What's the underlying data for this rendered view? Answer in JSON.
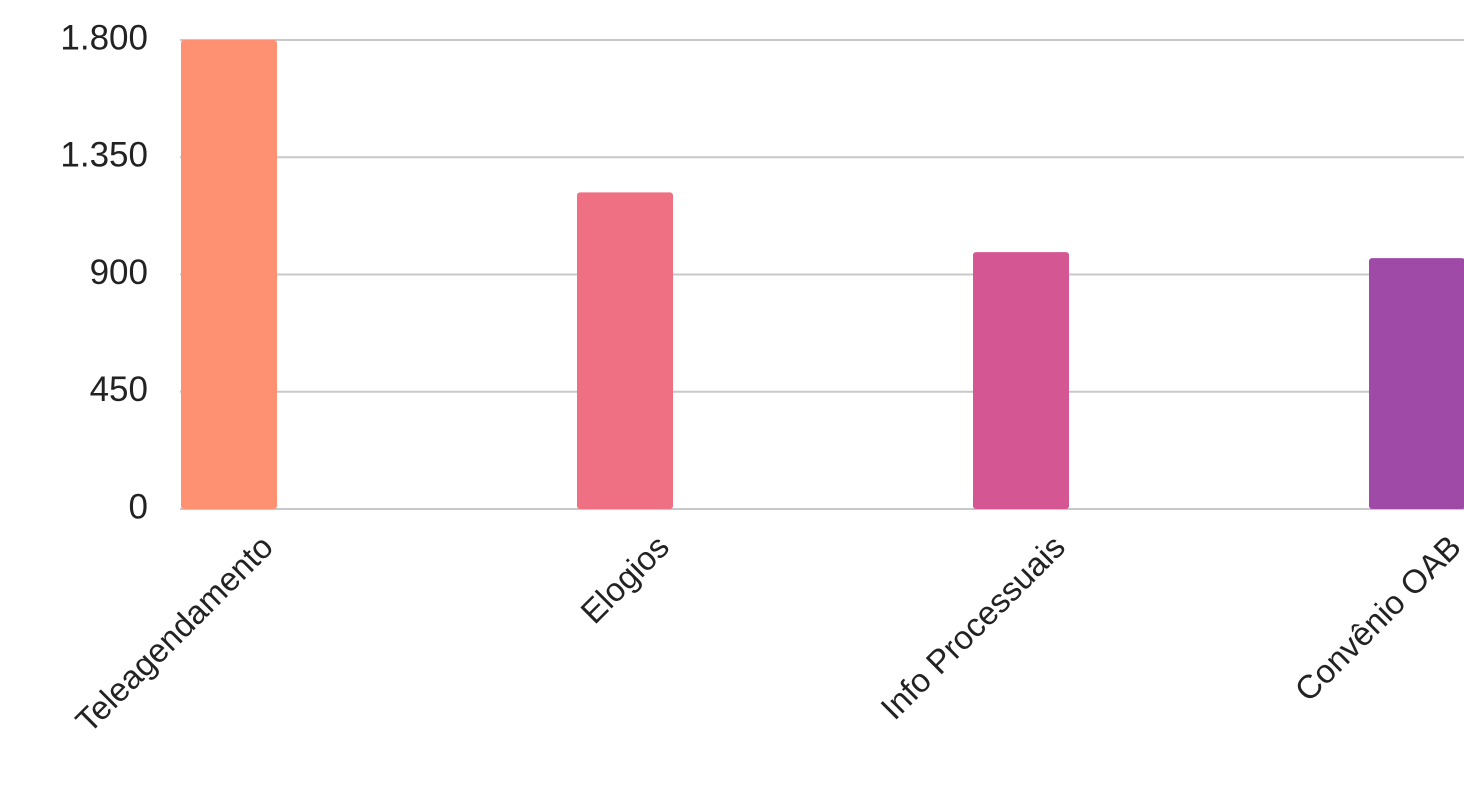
{
  "chart_data": {
    "type": "bar",
    "categories": [
      "Teleagendamento",
      "Elogios",
      "Info Processuais",
      "Convênio OAB"
    ],
    "values": [
      1800,
      1215,
      986,
      963
    ],
    "colors": [
      "#ff9173",
      "#f07083",
      "#d45693",
      "#9e4aa6"
    ],
    "ylim": [
      0,
      1800
    ],
    "yticks": [
      0,
      450,
      900,
      {
        "value": 1350,
        "label": "1.350"
      },
      {
        "value": 1800,
        "label": "1.800"
      }
    ],
    "grid": true
  }
}
